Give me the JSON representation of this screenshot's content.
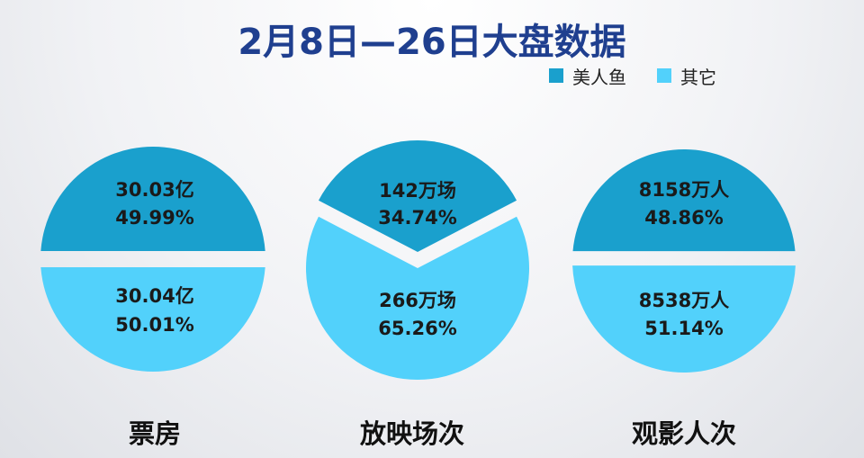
{
  "title": "2月8日—26日大盘数据",
  "colors": {
    "mermaid": "#1aa0cd",
    "others": "#52d1fb",
    "title": "#1f3f8f"
  },
  "legend": [
    {
      "label": "美人鱼",
      "color": "#1aa0cd"
    },
    {
      "label": "其它",
      "color": "#52d1fb"
    }
  ],
  "chart_data": [
    {
      "type": "pie",
      "title": "票房",
      "slices": [
        {
          "series": "美人鱼",
          "value_text": "30.03亿",
          "percent_text": "49.99%",
          "percent": 49.99
        },
        {
          "series": "其它",
          "value_text": "30.04亿",
          "percent_text": "50.01%",
          "percent": 50.01
        }
      ]
    },
    {
      "type": "pie",
      "title": "放映场次",
      "slices": [
        {
          "series": "美人鱼",
          "value_text": "142万场",
          "percent_text": "34.74%",
          "percent": 34.74
        },
        {
          "series": "其它",
          "value_text": "266万场",
          "percent_text": "65.26%",
          "percent": 65.26
        }
      ]
    },
    {
      "type": "pie",
      "title": "观影人次",
      "slices": [
        {
          "series": "美人鱼",
          "value_text": "8158万人",
          "percent_text": "48.86%",
          "percent": 48.86
        },
        {
          "series": "其它",
          "value_text": "8538万人",
          "percent_text": "51.14%",
          "percent": 51.14
        }
      ]
    }
  ]
}
